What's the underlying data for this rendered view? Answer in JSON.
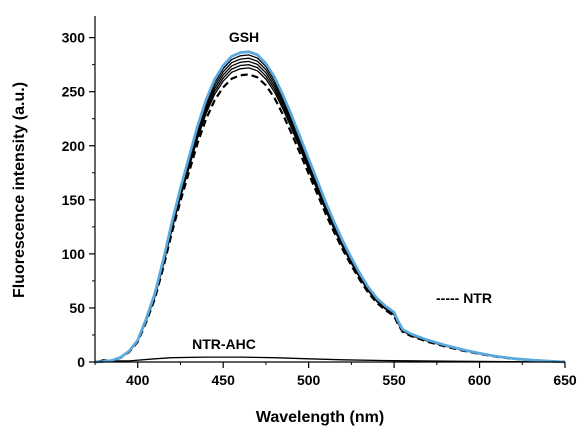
{
  "chart_data": {
    "type": "line",
    "title": "",
    "xlabel": "Wavelength (nm)",
    "ylabel": "Fluorescence intensity (a.u.)",
    "xlim": [
      375,
      650
    ],
    "ylim": [
      0,
      320
    ],
    "xticks": [
      400,
      450,
      500,
      550,
      600,
      650
    ],
    "yticks": [
      0,
      50,
      100,
      150,
      200,
      250,
      300
    ],
    "grid": false,
    "legend": "none",
    "annotations": [
      "GSH",
      "----- NTR",
      "NTR-AHC"
    ],
    "peak_wavelength": 465,
    "colors": {
      "gsh_highlight": "#5aa9df",
      "lines": "#000000",
      "axes": "#000000"
    },
    "series": [
      {
        "label": "GSH",
        "style": "solid",
        "color": "#5aa9df",
        "peak": 287
      },
      {
        "style": "solid",
        "color": "#000000",
        "peak": 284
      },
      {
        "style": "solid",
        "color": "#000000",
        "peak": 281
      },
      {
        "style": "solid",
        "color": "#000000",
        "peak": 278
      },
      {
        "style": "solid",
        "color": "#000000",
        "peak": 275
      },
      {
        "style": "solid",
        "color": "#000000",
        "peak": 272
      },
      {
        "label": "NTR",
        "style": "dashed",
        "color": "#000000",
        "peak": 266
      },
      {
        "label": "NTR-AHC",
        "style": "solid",
        "color": "#000000",
        "points": [
          [
            375,
            0
          ],
          [
            380,
            2
          ],
          [
            385,
            1
          ],
          [
            395,
            1
          ],
          [
            410,
            3
          ],
          [
            420,
            4
          ],
          [
            440,
            4.5
          ],
          [
            460,
            4.5
          ],
          [
            480,
            4
          ],
          [
            500,
            3
          ],
          [
            520,
            2
          ],
          [
            550,
            1.2
          ],
          [
            580,
            0.8
          ],
          [
            620,
            0.3
          ],
          [
            650,
            0
          ]
        ]
      }
    ],
    "profile": [
      [
        375,
        0.0
      ],
      [
        380,
        0.002
      ],
      [
        385,
        0.005
      ],
      [
        390,
        0.015
      ],
      [
        395,
        0.035
      ],
      [
        400,
        0.07
      ],
      [
        405,
        0.14
      ],
      [
        410,
        0.22
      ],
      [
        415,
        0.33
      ],
      [
        420,
        0.45
      ],
      [
        425,
        0.56
      ],
      [
        430,
        0.66
      ],
      [
        435,
        0.76
      ],
      [
        440,
        0.845
      ],
      [
        445,
        0.91
      ],
      [
        450,
        0.955
      ],
      [
        455,
        0.985
      ],
      [
        460,
        0.997
      ],
      [
        465,
        1.0
      ],
      [
        470,
        0.99
      ],
      [
        475,
        0.962
      ],
      [
        480,
        0.918
      ],
      [
        485,
        0.86
      ],
      [
        490,
        0.795
      ],
      [
        495,
        0.725
      ],
      [
        500,
        0.655
      ],
      [
        505,
        0.585
      ],
      [
        510,
        0.515
      ],
      [
        515,
        0.45
      ],
      [
        520,
        0.39
      ],
      [
        525,
        0.335
      ],
      [
        530,
        0.285
      ],
      [
        535,
        0.24
      ],
      [
        540,
        0.205
      ],
      [
        545,
        0.18
      ],
      [
        550,
        0.16
      ],
      [
        552,
        0.135
      ],
      [
        555,
        0.105
      ],
      [
        560,
        0.09
      ],
      [
        565,
        0.08
      ],
      [
        570,
        0.07
      ],
      [
        575,
        0.062
      ],
      [
        580,
        0.054
      ],
      [
        590,
        0.04
      ],
      [
        600,
        0.028
      ],
      [
        610,
        0.018
      ],
      [
        620,
        0.011
      ],
      [
        630,
        0.006
      ],
      [
        640,
        0.003
      ],
      [
        650,
        0.0
      ]
    ]
  }
}
